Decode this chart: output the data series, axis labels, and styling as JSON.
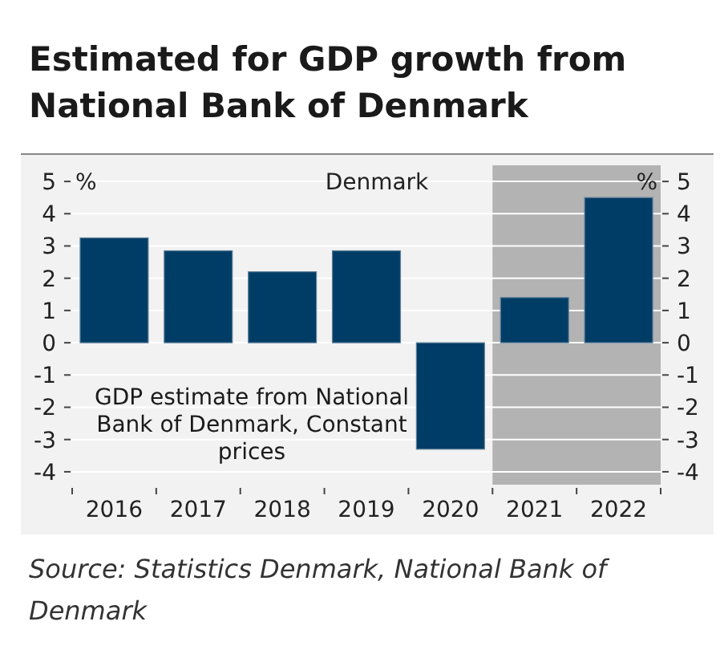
{
  "chart_data": {
    "type": "bar",
    "title": "Estimated for GDP growth  from National Bank of Denmark",
    "categories": [
      "2016",
      "2017",
      "2018",
      "2019",
      "2020",
      "2021",
      "2022"
    ],
    "values": [
      3.25,
      2.85,
      2.2,
      2.85,
      -3.3,
      1.4,
      4.5
    ],
    "color": "#003d66",
    "ylabel": "%",
    "y2label": "%",
    "ylim": [
      -4.4,
      5.5
    ],
    "yticks": [
      -4,
      -3,
      -2,
      -1,
      0,
      1,
      2,
      3,
      4,
      5
    ],
    "y2lim": [
      -4.4,
      5.5
    ],
    "y2ticks": [
      -4,
      -3,
      -2,
      -1,
      0,
      1,
      2,
      3,
      4,
      5
    ],
    "grid": "y",
    "bands": [
      {
        "axis": "x",
        "from": "2021",
        "to": "2022",
        "color": "#b3b3b3"
      }
    ],
    "annotations": [
      "Denmark",
      "GDP estimate from National Bank of Denmark, Constant prices",
      "Source: Statistics Denmark, National Bank of Denmark"
    ]
  }
}
